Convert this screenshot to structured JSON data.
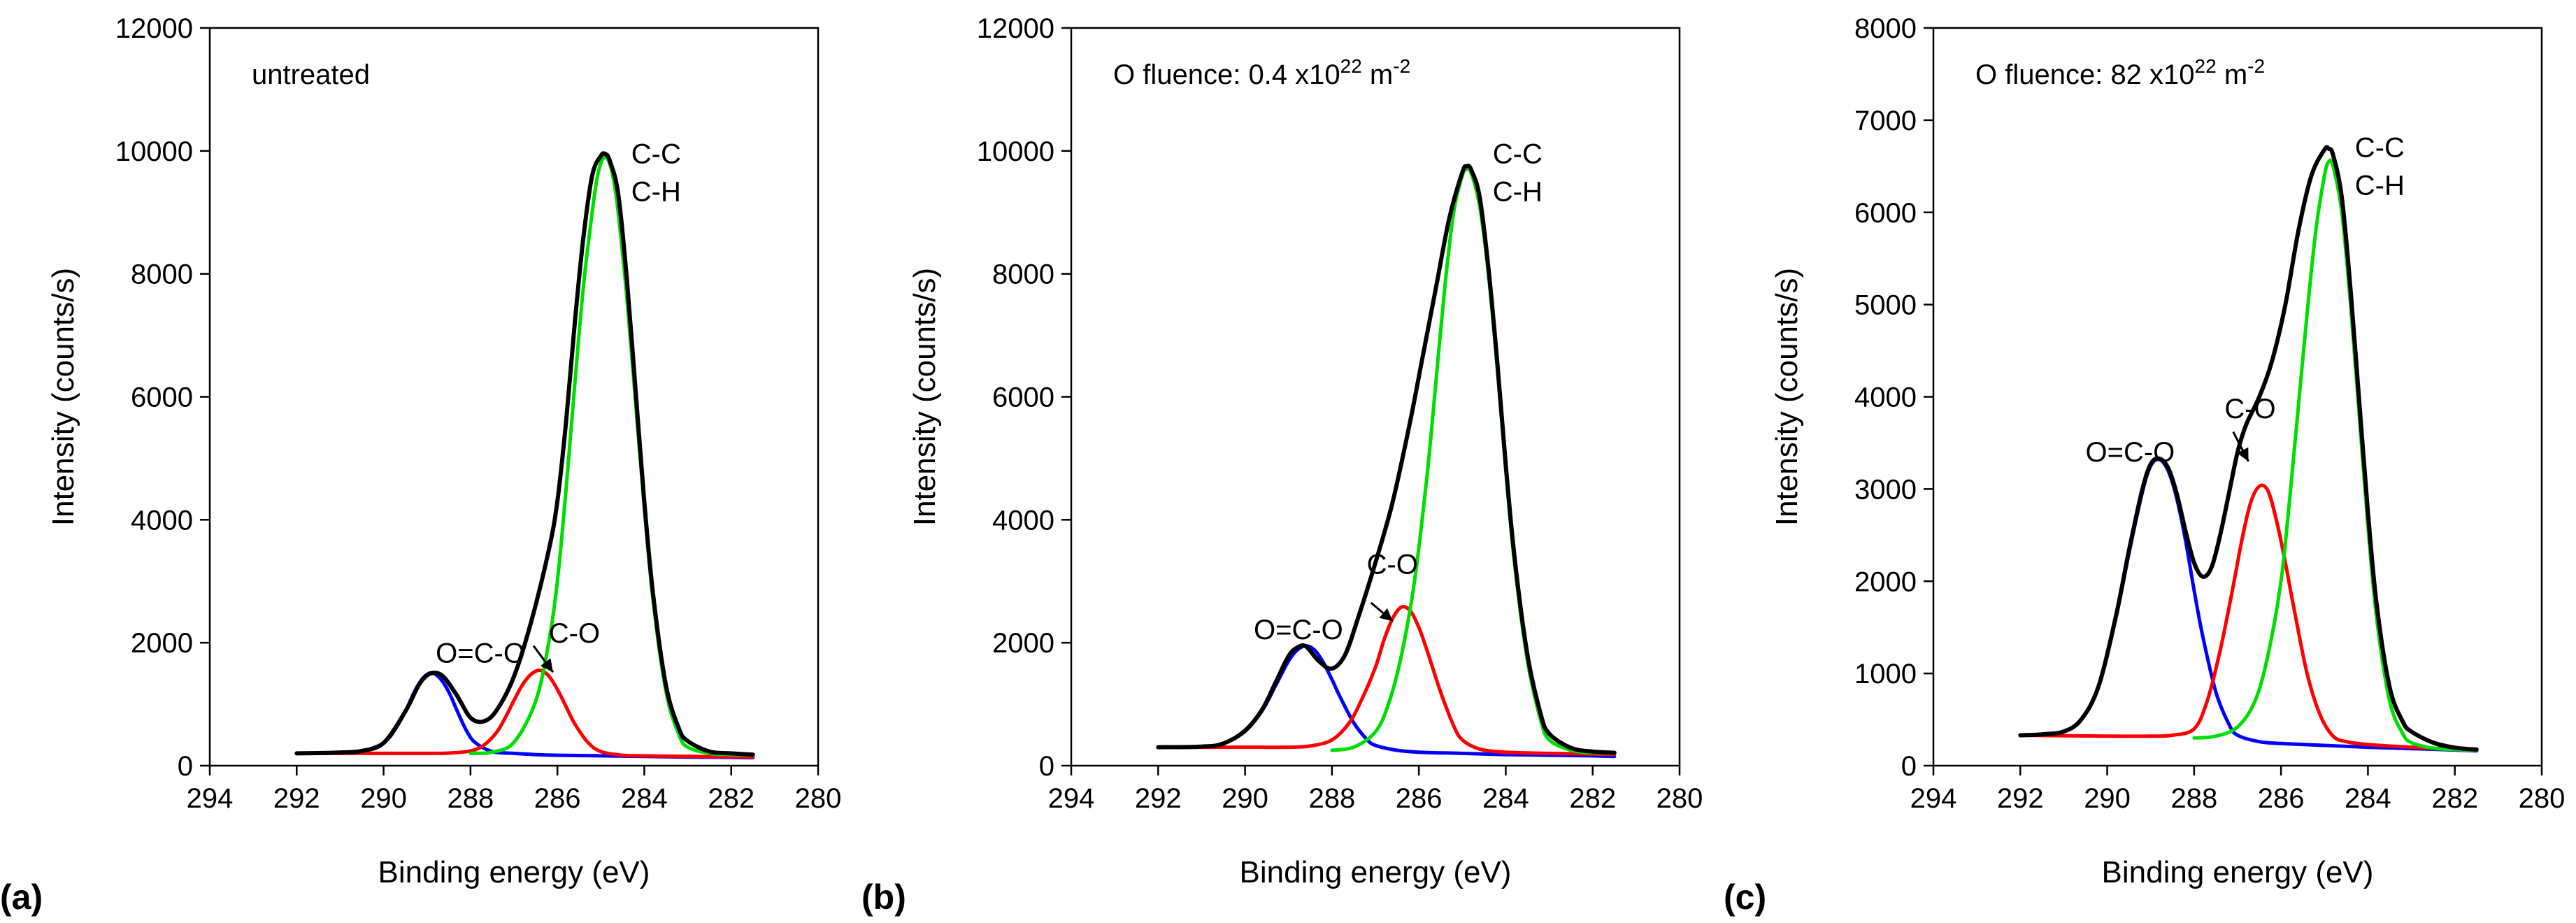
{
  "chart_data": [
    {
      "type": "line",
      "panel_label": "(a)",
      "xlabel": "Binding energy (eV)",
      "ylabel": "Intensity (counts/s)",
      "xlim": [
        294,
        280
      ],
      "ylim": [
        0,
        12000
      ],
      "xticks": [
        294,
        292,
        290,
        288,
        286,
        284,
        282,
        280
      ],
      "yticks": [
        0,
        2000,
        4000,
        6000,
        8000,
        10000,
        12000
      ],
      "annotation": {
        "text": "untreated",
        "sup1": "",
        "text2": "",
        "sup2": ""
      },
      "peak_labels": [
        {
          "lines": [
            "C-C",
            "C-H"
          ],
          "x": 284.3,
          "y": 9800
        },
        {
          "lines": [
            "C-O"
          ],
          "x": 286.2,
          "y": 2000
        },
        {
          "lines": [
            "O=C-O"
          ],
          "x": 288.8,
          "y": 1680
        }
      ],
      "arrows": [
        {
          "from": [
            286.55,
            1950
          ],
          "to": [
            286.1,
            1520
          ]
        }
      ],
      "series": [
        {
          "name": "O=C-O component",
          "color": "#0000ff",
          "x": [
            292,
            291.5,
            291,
            290.5,
            290.2,
            290,
            289.8,
            289.5,
            289.3,
            289.1,
            288.9,
            288.7,
            288.5,
            288.3,
            288.1,
            287.9,
            287.5,
            287,
            286.5,
            286,
            285,
            284,
            283,
            282,
            281.5
          ],
          "y": [
            200,
            205,
            215,
            240,
            300,
            370,
            520,
            880,
            1190,
            1420,
            1510,
            1420,
            1200,
            880,
            580,
            380,
            230,
            200,
            180,
            170,
            160,
            150,
            140,
            135,
            130
          ]
        },
        {
          "name": "C-O component",
          "color": "#ff0000",
          "x": [
            292,
            290,
            289,
            288.5,
            288,
            287.7,
            287.4,
            287.2,
            287,
            286.8,
            286.6,
            286.4,
            286.2,
            286,
            285.8,
            285.6,
            285.3,
            285,
            284.5,
            284,
            283,
            282,
            281.5
          ],
          "y": [
            200,
            200,
            200,
            205,
            240,
            330,
            540,
            780,
            1060,
            1320,
            1490,
            1550,
            1460,
            1240,
            960,
            680,
            380,
            230,
            170,
            160,
            150,
            145,
            140
          ]
        },
        {
          "name": "C-C/C-H component",
          "color": "#00dd00",
          "x": [
            288,
            287.5,
            287,
            286.5,
            286.2,
            286,
            285.8,
            285.6,
            285.4,
            285.2,
            285.1,
            285,
            284.9,
            284.8,
            284.7,
            284.6,
            284.4,
            284.2,
            284,
            283.8,
            283.5,
            283.2,
            283,
            282.5,
            282,
            281.5
          ],
          "y": [
            200,
            220,
            380,
            1050,
            2000,
            3000,
            4500,
            6200,
            7800,
            9000,
            9500,
            9800,
            9900,
            9800,
            9500,
            9000,
            7600,
            5900,
            4200,
            2700,
            1200,
            500,
            300,
            200,
            180,
            170
          ]
        },
        {
          "name": "Envelope",
          "color": "#000000",
          "x": [
            292,
            291.5,
            291,
            290.5,
            290,
            289.5,
            289.2,
            289,
            288.8,
            288.6,
            288.3,
            288,
            287.7,
            287.4,
            287,
            286.6,
            286.2,
            286,
            285.8,
            285.6,
            285.4,
            285.2,
            285,
            284.9,
            284.8,
            284.6,
            284.4,
            284.2,
            284,
            283.8,
            283.5,
            283.2,
            283,
            282.5,
            282,
            281.5
          ],
          "y": [
            200,
            205,
            215,
            240,
            370,
            880,
            1300,
            1470,
            1510,
            1430,
            1130,
            780,
            720,
            900,
            1450,
            2350,
            3500,
            4300,
            5600,
            7200,
            8600,
            9600,
            9920,
            9950,
            9850,
            9300,
            7900,
            6100,
            4300,
            2800,
            1300,
            600,
            400,
            230,
            200,
            180
          ]
        }
      ]
    },
    {
      "type": "line",
      "panel_label": "(b)",
      "xlabel": "Binding energy (eV)",
      "ylabel": "Intensity (counts/s)",
      "xlim": [
        294,
        280
      ],
      "ylim": [
        0,
        12000
      ],
      "xticks": [
        294,
        292,
        290,
        288,
        286,
        284,
        282,
        280
      ],
      "yticks": [
        0,
        2000,
        4000,
        6000,
        8000,
        10000,
        12000
      ],
      "annotation": {
        "text": "O fluence: 0.4 x10",
        "sup1": "22",
        "text2": " m",
        "sup2": "-2"
      },
      "peak_labels": [
        {
          "lines": [
            "C-C",
            "C-H"
          ],
          "x": 284.3,
          "y": 9800
        },
        {
          "lines": [
            "C-O"
          ],
          "x": 287.2,
          "y": 3120
        },
        {
          "lines": [
            "O=C-O"
          ],
          "x": 289.8,
          "y": 2060
        }
      ],
      "arrows": [
        {
          "from": [
            287.1,
            2650
          ],
          "to": [
            286.6,
            2350
          ]
        }
      ],
      "series": [
        {
          "name": "O=C-O component",
          "color": "#0000ff",
          "x": [
            292,
            291,
            290.5,
            290,
            289.6,
            289.3,
            289,
            288.8,
            288.6,
            288.4,
            288.2,
            288,
            287.8,
            287.5,
            287.2,
            287,
            286.5,
            286,
            285,
            284,
            283,
            282,
            281.5
          ],
          "y": [
            300,
            310,
            360,
            560,
            900,
            1300,
            1700,
            1880,
            1950,
            1880,
            1680,
            1400,
            1100,
            700,
            430,
            330,
            250,
            220,
            200,
            180,
            170,
            160,
            150
          ]
        },
        {
          "name": "C-O component",
          "color": "#ff0000",
          "x": [
            292,
            290,
            289,
            288.5,
            288,
            287.6,
            287.3,
            287,
            286.8,
            286.6,
            286.4,
            286.2,
            286,
            285.8,
            285.5,
            285.2,
            285,
            284.6,
            284,
            283,
            282,
            281.5
          ],
          "y": [
            300,
            300,
            300,
            320,
            420,
            700,
            1100,
            1600,
            2050,
            2400,
            2580,
            2520,
            2250,
            1850,
            1200,
            650,
            420,
            270,
            220,
            200,
            190,
            180
          ]
        },
        {
          "name": "C-C/C-H component",
          "color": "#00dd00",
          "x": [
            288,
            287.5,
            287,
            286.7,
            286.4,
            286.1,
            285.8,
            285.6,
            285.4,
            285.2,
            285,
            284.9,
            284.8,
            284.6,
            284.4,
            284.2,
            284,
            283.8,
            283.5,
            283.2,
            283,
            282.5,
            282,
            281.5
          ],
          "y": [
            250,
            300,
            550,
            1000,
            1800,
            3000,
            4800,
            6300,
            7800,
            9000,
            9600,
            9700,
            9650,
            9100,
            8000,
            6500,
            4800,
            3300,
            1700,
            750,
            420,
            250,
            210,
            200
          ]
        },
        {
          "name": "Envelope",
          "color": "#000000",
          "x": [
            292,
            291,
            290.5,
            290,
            289.6,
            289.3,
            289,
            288.8,
            288.6,
            288.3,
            288,
            287.7,
            287.4,
            287,
            286.6,
            286.2,
            285.9,
            285.6,
            285.3,
            285,
            284.9,
            284.8,
            284.6,
            284.4,
            284.2,
            284,
            283.8,
            283.5,
            283.2,
            283,
            282.5,
            282,
            281.5
          ],
          "y": [
            300,
            310,
            360,
            570,
            920,
            1350,
            1780,
            1920,
            1940,
            1700,
            1580,
            1800,
            2400,
            3300,
            4300,
            5600,
            6700,
            7800,
            8900,
            9650,
            9750,
            9700,
            9250,
            8100,
            6600,
            4900,
            3400,
            1800,
            850,
            520,
            290,
            230,
            210
          ]
        }
      ]
    },
    {
      "type": "line",
      "panel_label": "(c)",
      "xlabel": "Binding energy (eV)",
      "ylabel": "Intensity (counts/s)",
      "xlim": [
        294,
        280
      ],
      "ylim": [
        0,
        8000
      ],
      "xticks": [
        294,
        292,
        290,
        288,
        286,
        284,
        282,
        280
      ],
      "yticks": [
        0,
        1000,
        2000,
        3000,
        4000,
        5000,
        6000,
        7000,
        8000
      ],
      "annotation": {
        "text": "O fluence: 82 x10",
        "sup1": "22",
        "text2": " m",
        "sup2": "-2"
      },
      "peak_labels": [
        {
          "lines": [
            "C-C",
            "C-H"
          ],
          "x": 284.3,
          "y": 6600
        },
        {
          "lines": [
            "C-O"
          ],
          "x": 287.3,
          "y": 3770
        },
        {
          "lines": [
            "O=C-O"
          ],
          "x": 290.5,
          "y": 3300
        }
      ],
      "arrows": [
        {
          "from": [
            287.1,
            3620
          ],
          "to": [
            286.75,
            3300
          ]
        }
      ],
      "series": [
        {
          "name": "O=C-O component",
          "color": "#0000ff",
          "x": [
            292,
            291.5,
            291,
            290.6,
            290.2,
            289.8,
            289.5,
            289.2,
            289,
            288.8,
            288.6,
            288.4,
            288.2,
            288,
            287.8,
            287.5,
            287.2,
            287,
            286.5,
            286,
            285,
            284,
            283,
            282,
            281.5
          ],
          "y": [
            330,
            340,
            370,
            500,
            850,
            1600,
            2300,
            2950,
            3250,
            3320,
            3200,
            2900,
            2450,
            1900,
            1400,
            800,
            450,
            330,
            260,
            240,
            220,
            200,
            185,
            170,
            160
          ]
        },
        {
          "name": "C-O component",
          "color": "#ff0000",
          "x": [
            292,
            290,
            289,
            288.5,
            288,
            287.7,
            287.4,
            287.1,
            286.9,
            286.7,
            286.5,
            286.3,
            286.1,
            285.9,
            285.7,
            285.4,
            285.1,
            284.8,
            284.5,
            284,
            283,
            282,
            281.5
          ],
          "y": [
            330,
            320,
            320,
            330,
            400,
            700,
            1250,
            1950,
            2450,
            2850,
            3030,
            2980,
            2650,
            2200,
            1700,
            1000,
            550,
            320,
            260,
            230,
            200,
            180,
            170
          ]
        },
        {
          "name": "C-C/C-H component",
          "color": "#00dd00",
          "x": [
            288,
            287.5,
            287,
            286.6,
            286.3,
            286,
            285.8,
            285.6,
            285.4,
            285.2,
            285,
            284.9,
            284.8,
            284.6,
            284.4,
            284.2,
            284,
            283.8,
            283.5,
            283.2,
            283,
            282.5,
            282,
            281.5
          ],
          "y": [
            300,
            320,
            420,
            700,
            1200,
            2000,
            2900,
            3900,
            4900,
            5800,
            6400,
            6550,
            6500,
            6000,
            5000,
            3800,
            2600,
            1600,
            700,
            350,
            250,
            190,
            175,
            165
          ]
        },
        {
          "name": "Envelope",
          "color": "#000000",
          "x": [
            292,
            291.5,
            291,
            290.6,
            290.2,
            289.8,
            289.5,
            289.2,
            289,
            288.8,
            288.6,
            288.4,
            288.2,
            288,
            287.8,
            287.6,
            287.4,
            287.2,
            287,
            286.8,
            286.5,
            286.2,
            285.9,
            285.6,
            285.3,
            285,
            284.9,
            284.8,
            284.6,
            284.4,
            284.2,
            284,
            283.8,
            283.5,
            283.2,
            283,
            282.5,
            282,
            281.5
          ],
          "y": [
            330,
            340,
            370,
            500,
            860,
            1620,
            2330,
            2980,
            3270,
            3330,
            3230,
            2950,
            2550,
            2200,
            2050,
            2150,
            2500,
            2950,
            3400,
            3700,
            4000,
            4400,
            5000,
            5800,
            6400,
            6680,
            6690,
            6620,
            6160,
            5160,
            3950,
            2750,
            1750,
            850,
            480,
            370,
            250,
            195,
            175
          ]
        }
      ]
    }
  ]
}
